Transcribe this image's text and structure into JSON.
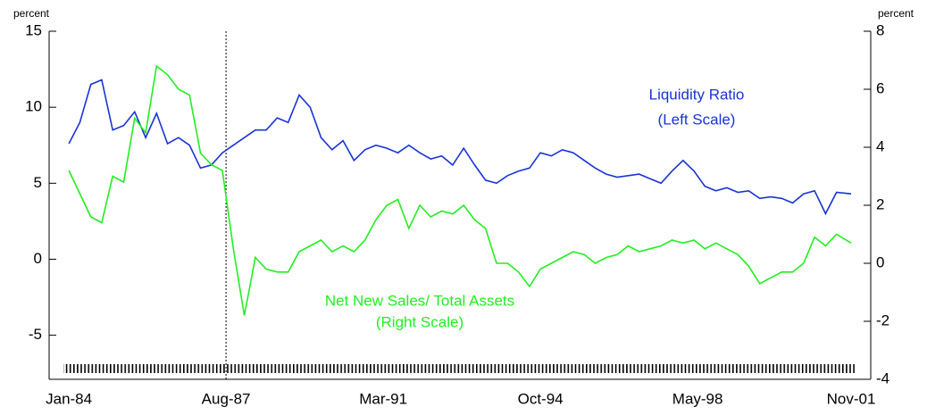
{
  "chart_data": {
    "type": "line",
    "y_label": "percent",
    "y2_label": "percent",
    "annotations": [
      {
        "text": "Liquidity Ratio",
        "color": "#1a33d6"
      },
      {
        "text": "(Left Scale)",
        "color": "#1a33d6"
      },
      {
        "text": "Net New Sales/ Total Assets",
        "color": "#22ee22"
      },
      {
        "text": "(Right Scale)",
        "color": "#22ee22"
      }
    ],
    "x": [
      1984.0,
      1984.25,
      1984.5,
      1984.75,
      1985.0,
      1985.25,
      1985.5,
      1985.75,
      1986.0,
      1986.25,
      1986.5,
      1986.75,
      1987.0,
      1987.25,
      1987.5,
      1987.75,
      1988.0,
      1988.25,
      1988.5,
      1988.75,
      1989.0,
      1989.25,
      1989.5,
      1989.75,
      1990.0,
      1990.25,
      1990.5,
      1990.75,
      1991.0,
      1991.25,
      1991.5,
      1991.75,
      1992.0,
      1992.25,
      1992.5,
      1992.75,
      1993.0,
      1993.25,
      1993.5,
      1993.75,
      1994.0,
      1994.25,
      1994.5,
      1994.75,
      1995.0,
      1995.25,
      1995.5,
      1995.75,
      1996.0,
      1996.25,
      1996.5,
      1996.75,
      1997.0,
      1997.25,
      1997.5,
      1997.75,
      1998.0,
      1998.25,
      1998.5,
      1998.75,
      1999.0,
      1999.25,
      1999.5,
      1999.75,
      2000.0,
      2000.25,
      2000.5,
      2000.75,
      2001.0,
      2001.25,
      2001.5,
      2001.833
    ],
    "series": [
      {
        "name": "Liquidity Ratio",
        "color": "#1a33d6",
        "values": [
          7.6,
          9.0,
          11.5,
          11.8,
          8.5,
          8.8,
          9.7,
          8.0,
          9.6,
          7.6,
          8.0,
          7.5,
          6.0,
          6.2,
          7.0,
          7.5,
          8.0,
          8.5,
          8.5,
          9.3,
          9.0,
          10.8,
          10.0,
          8.0,
          7.2,
          7.8,
          6.5,
          7.2,
          7.5,
          7.3,
          7.0,
          7.5,
          7.0,
          6.6,
          6.8,
          6.2,
          7.3,
          6.2,
          5.2,
          5.0,
          5.5,
          5.8,
          6.0,
          7.0,
          6.8,
          7.2,
          7.0,
          6.5,
          6.0,
          5.6,
          5.4,
          5.5,
          5.6,
          5.3,
          5.0,
          5.8,
          6.5,
          5.8,
          4.8,
          4.5,
          4.7,
          4.4,
          4.5,
          4.0,
          4.1,
          4.0,
          3.7,
          4.3,
          4.5,
          3.0,
          4.4,
          4.3
        ]
      },
      {
        "name": "Net New Sales/ Total Assets",
        "color": "#22ee22",
        "axis": "y2",
        "values": [
          3.2,
          2.4,
          1.6,
          1.4,
          3.0,
          2.8,
          5.0,
          4.5,
          6.8,
          6.5,
          6.0,
          5.8,
          3.8,
          3.4,
          3.2,
          0.5,
          -1.8,
          0.2,
          -0.2,
          -0.3,
          -0.3,
          0.4,
          0.6,
          0.8,
          0.4,
          0.6,
          0.4,
          0.8,
          1.5,
          2.0,
          2.2,
          1.2,
          2.0,
          1.6,
          1.8,
          1.7,
          2.0,
          1.5,
          1.2,
          0.0,
          0.0,
          -0.3,
          -0.8,
          -0.2,
          0.0,
          0.2,
          0.4,
          0.3,
          0.0,
          0.2,
          0.3,
          0.6,
          0.4,
          0.5,
          0.6,
          0.8,
          0.7,
          0.8,
          0.5,
          0.7,
          0.5,
          0.3,
          -0.1,
          -0.7,
          -0.5,
          -0.3,
          -0.3,
          0.0,
          0.9,
          0.6,
          1.0,
          0.7
        ]
      }
    ],
    "xlim": [
      1983.55,
      2002.28
    ],
    "xticks": [
      {
        "value": 1984.0,
        "label": "Jan-84"
      },
      {
        "value": 1987.583,
        "label": "Aug-87"
      },
      {
        "value": 1991.167,
        "label": "Mar-91"
      },
      {
        "value": 1994.75,
        "label": "Oct-94"
      },
      {
        "value": 1998.333,
        "label": "May-98"
      },
      {
        "value": 2001.833,
        "label": "Nov-01"
      }
    ],
    "ylim": [
      -7.9,
      15
    ],
    "yticks": [
      -5,
      0,
      5,
      10,
      15
    ],
    "y2lim": [
      -4,
      8
    ],
    "y2ticks": [
      -4,
      -2,
      0,
      2,
      4,
      6,
      8
    ]
  }
}
